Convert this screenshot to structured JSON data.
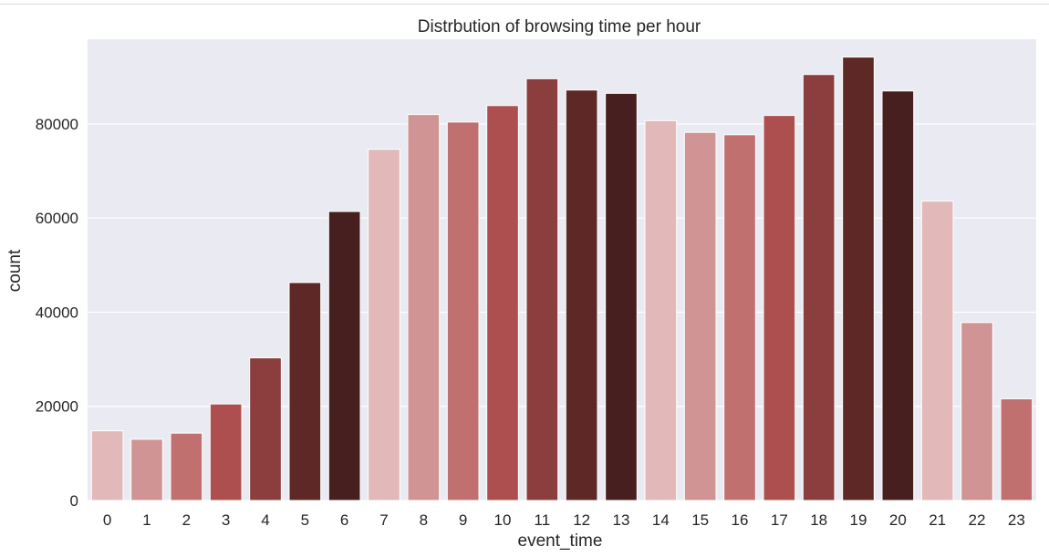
{
  "chart_data": {
    "type": "bar",
    "title": "Distrbution of browsing time per hour",
    "xlabel": "event_time",
    "ylabel": "count",
    "categories": [
      "0",
      "1",
      "2",
      "3",
      "4",
      "5",
      "6",
      "7",
      "8",
      "9",
      "10",
      "11",
      "12",
      "13",
      "14",
      "15",
      "16",
      "17",
      "18",
      "19",
      "20",
      "21",
      "22",
      "23"
    ],
    "values": [
      14800,
      13000,
      14300,
      20500,
      30300,
      46300,
      61400,
      74600,
      82000,
      80400,
      83900,
      89600,
      87200,
      86500,
      80700,
      78200,
      77700,
      81800,
      90500,
      94200,
      87000,
      63600,
      37800,
      21600
    ],
    "ylim": [
      0,
      98000
    ],
    "yticks": [
      0,
      20000,
      40000,
      60000,
      80000
    ],
    "grid": true,
    "background": "#eaeaf2",
    "palette": [
      "#e2b8b8",
      "#cf9493",
      "#c0706f",
      "#ad4f4f",
      "#8b3e3d",
      "#5e2827",
      "#481f1f"
    ]
  }
}
